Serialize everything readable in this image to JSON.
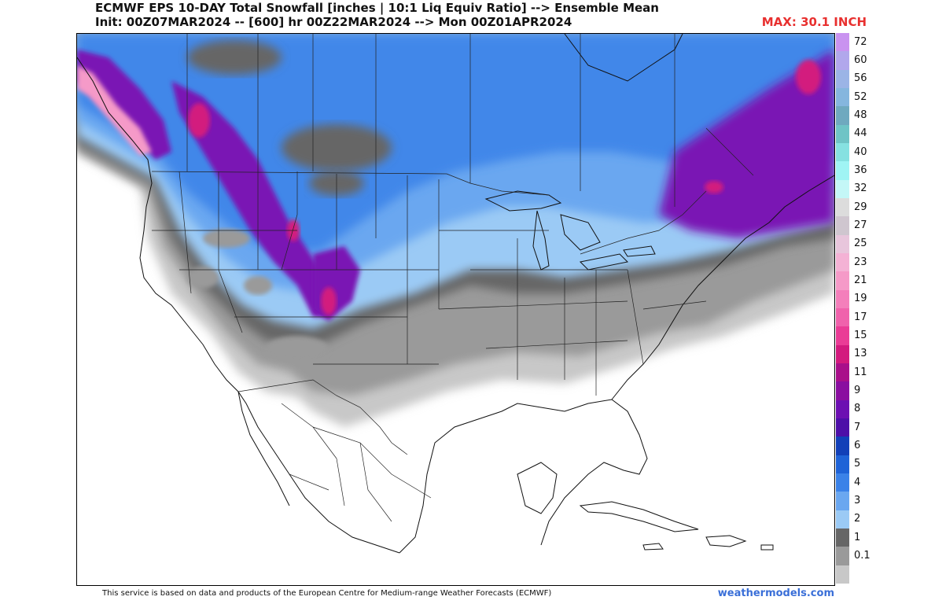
{
  "header": {
    "title_line1": "ECMWF EPS 10-DAY Total Snowfall [inches | 10:1 Liq Equiv Ratio] --> Ensemble Mean",
    "title_line2": "Init: 00Z07MAR2024 -- [600] hr 00Z22MAR2024 --> Mon 00Z01APR2024",
    "max_label": "MAX: 30.1 INCH"
  },
  "legend": {
    "labels": [
      "72",
      "60",
      "56",
      "52",
      "48",
      "44",
      "40",
      "36",
      "32",
      "29",
      "27",
      "25",
      "23",
      "21",
      "19",
      "17",
      "15",
      "13",
      "11",
      "9",
      "8",
      "7",
      "6",
      "5",
      "4",
      "3",
      "2",
      "1",
      "0.1"
    ],
    "colors": [
      "#c993f0",
      "#b1a7ec",
      "#9bb4e6",
      "#85b6de",
      "#6fa9bf",
      "#6fc4c6",
      "#86e1e1",
      "#9ff4f4",
      "#c4f7f7",
      "#dcdcdc",
      "#cfc6cf",
      "#e8c6dc",
      "#f4b2d5",
      "#f59ac8",
      "#f47fbb",
      "#f062ac",
      "#ea3c96",
      "#d31a7e",
      "#a90f8a",
      "#8a0ea0",
      "#6c0fb2",
      "#4d0fa8",
      "#1240b8",
      "#1f63d7",
      "#3b82e8",
      "#6aa7f0",
      "#9bcaf5",
      "#666666",
      "#9a9a9a",
      "#c8c8c8"
    ]
  },
  "map": {
    "region": "North America (CONUS, southern Canada, Mexico, Caribbean)",
    "snow_colors": {
      "trace": "#c8c8c8",
      "one_inch": "#9a9a9a",
      "two_inch": "#666666",
      "light_blue": "#9bcaf5",
      "mid_blue": "#6aa7f0",
      "blue": "#3b82e8",
      "deep_blue": "#1f63d7",
      "purple": "#7a14b4",
      "magenta": "#d31a7e",
      "pink": "#f59ac8"
    }
  },
  "footer": {
    "credit": "This service is based on data and products of the European Centre for Medium-range Weather Forecasts (ECMWF)",
    "brand": "weathermodels.com"
  }
}
